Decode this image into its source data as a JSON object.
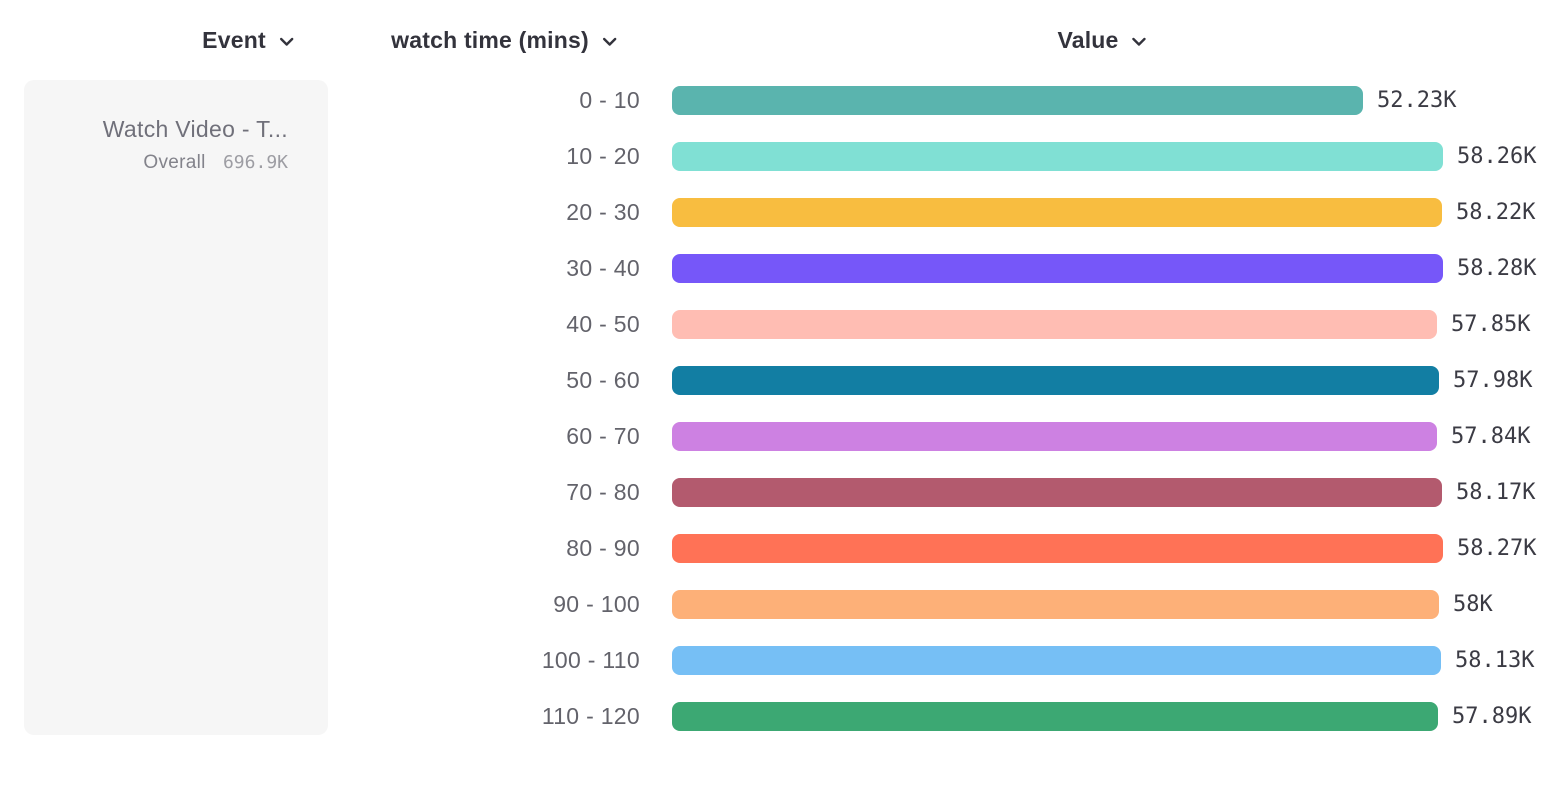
{
  "header": {
    "event_column": {
      "label": "Event"
    },
    "breakdown_column": {
      "label": "watch time (mins)"
    },
    "value_column": {
      "label": "Value"
    }
  },
  "event_panel": {
    "title": "Watch Video - T...",
    "overall_label": "Overall",
    "overall_value": "696.9K"
  },
  "chart_data": {
    "type": "bar",
    "orientation": "horizontal",
    "title": "",
    "xlabel": "Value",
    "ylabel": "watch time (mins)",
    "grid": false,
    "xlim": [
      0,
      58280
    ],
    "value_labels_position": "right-of-bar",
    "categories": [
      "0 - 10",
      "10 - 20",
      "20 - 30",
      "30 - 40",
      "40 - 50",
      "50 - 60",
      "60 - 70",
      "70 - 80",
      "80 - 90",
      "90 - 100",
      "100 - 110",
      "110 - 120"
    ],
    "values": [
      52230,
      58260,
      58220,
      58280,
      57850,
      57980,
      57840,
      58170,
      58270,
      58000,
      58130,
      57890
    ],
    "values_display": [
      "52.23K",
      "58.26K",
      "58.22K",
      "58.28K",
      "57.85K",
      "57.98K",
      "57.84K",
      "58.17K",
      "58.27K",
      "58K",
      "58.13K",
      "57.89K"
    ],
    "bar_colors": [
      "#5ab4ae",
      "#80e0d4",
      "#f8bd40",
      "#7657f9",
      "#ffbdb3",
      "#127ea3",
      "#cd81e2",
      "#b35a6e",
      "#ff7256",
      "#fdb078",
      "#76bff5",
      "#3ca873"
    ]
  },
  "colors": {
    "panel_background": "#f6f6f6",
    "header_text": "#33333c",
    "category_text": "#63636b",
    "value_text": "#3b3b44"
  }
}
